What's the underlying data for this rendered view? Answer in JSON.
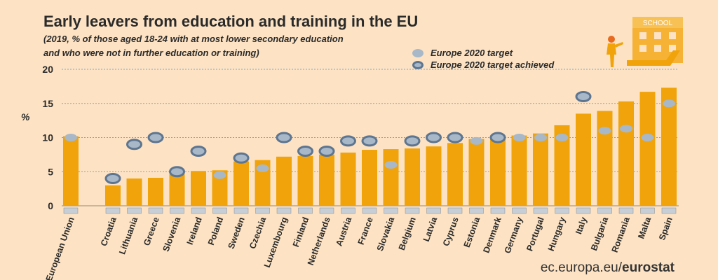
{
  "chart_data": {
    "type": "bar",
    "title": "Early leavers from education and training in the EU",
    "subtitle_line1": "(2019, %  of those aged 18-24 with at most lower secondary education",
    "subtitle_line2": "and who were not in further education or training)",
    "ylabel": "%",
    "ylim": [
      0,
      20
    ],
    "yticks": [
      "0",
      "5",
      "10",
      "15",
      "20"
    ],
    "categories": [
      "European Union",
      "Croatia",
      "Lithuania",
      "Greece",
      "Slovenia",
      "Ireland",
      "Poland",
      "Sweden",
      "Czechia",
      "Luxembourg",
      "Finland",
      "Netherlands",
      "Austria",
      "France",
      "Slovakia",
      "Belgium",
      "Latvia",
      "Cyprus",
      "Estonia",
      "Denmark",
      "Germany",
      "Portugal",
      "Hungary",
      "Italy",
      "Bulgaria",
      "Romania",
      "Malta",
      "Spain"
    ],
    "series": [
      {
        "name": "Early leavers 2019",
        "values": [
          10.2,
          3.0,
          4.0,
          4.1,
          4.6,
          5.1,
          5.2,
          6.5,
          6.7,
          7.2,
          7.3,
          7.5,
          7.8,
          8.2,
          8.3,
          8.4,
          8.7,
          9.2,
          9.8,
          9.9,
          10.3,
          10.6,
          11.8,
          13.5,
          13.9,
          15.3,
          16.7,
          17.3
        ]
      },
      {
        "name": "Europe 2020 target",
        "values": [
          10,
          4,
          9,
          10,
          5,
          8,
          4.5,
          7,
          5.5,
          10,
          8,
          8,
          9.5,
          9.5,
          6,
          9.5,
          10,
          10,
          9.5,
          10,
          10,
          10,
          10,
          16,
          11,
          11.3,
          10,
          15
        ]
      }
    ],
    "target_achieved": [
      false,
      true,
      true,
      true,
      true,
      true,
      false,
      true,
      false,
      true,
      true,
      true,
      true,
      true,
      false,
      true,
      true,
      true,
      false,
      true,
      false,
      false,
      false,
      true,
      false,
      false,
      false,
      false
    ],
    "legend": [
      "Europe 2020 target",
      "Europe 2020 target achieved"
    ]
  },
  "school_sign": "SCHOOL",
  "footer": {
    "domain": "ec.europa.eu/",
    "brand": "eurostat"
  },
  "colors": {
    "bar": "#f0a30a",
    "target": "#a8b8c8",
    "achieved_ring": "#5e7590",
    "grid": "#7aa6c8",
    "background": "#fde3c4"
  }
}
